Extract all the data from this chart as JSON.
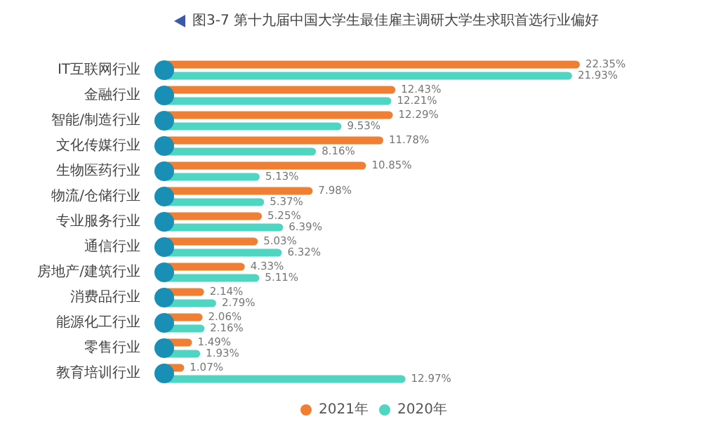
{
  "chart_data": {
    "type": "bar",
    "orientation": "horizontal",
    "relative": false,
    "title": "图3-7  第十九届中国大学生最佳雇主调研大学生求职首选行业偏好",
    "categories": [
      "IT互联网行业",
      "金融行业",
      "智能/制造行业",
      "文化传媒行业",
      "生物医药行业",
      "物流/仓储行业",
      "专业服务行业",
      "通信行业",
      "房地产/建筑行业",
      "消费品行业",
      "能源化工行业",
      "零售行业",
      "教育培训行业"
    ],
    "series": [
      {
        "name": "2021年",
        "color": "#f07f33",
        "values": [
          22.35,
          12.43,
          12.29,
          11.78,
          10.85,
          7.98,
          5.25,
          5.03,
          4.33,
          2.14,
          2.06,
          1.49,
          1.07
        ],
        "value_labels": [
          "22.35%",
          "12.43%",
          "12.29%",
          "11.78%",
          "10.85%",
          "7.98%",
          "5.25%",
          "5.03%",
          "4.33%",
          "2.14%",
          "2.06%",
          "1.49%",
          "1.07%"
        ]
      },
      {
        "name": "2020年",
        "color": "#4fd6c3",
        "values": [
          21.93,
          12.21,
          9.53,
          8.16,
          5.13,
          5.37,
          6.39,
          6.32,
          5.11,
          2.79,
          2.16,
          1.93,
          12.97
        ],
        "value_labels": [
          "21.93%",
          "12.21%",
          "9.53%",
          "8.16%",
          "5.13%",
          "5.37%",
          "6.39%",
          "6.32%",
          "5.11%",
          "2.79%",
          "2.16%",
          "1.93%",
          "12.97%"
        ]
      }
    ],
    "legend": "bottom"
  }
}
